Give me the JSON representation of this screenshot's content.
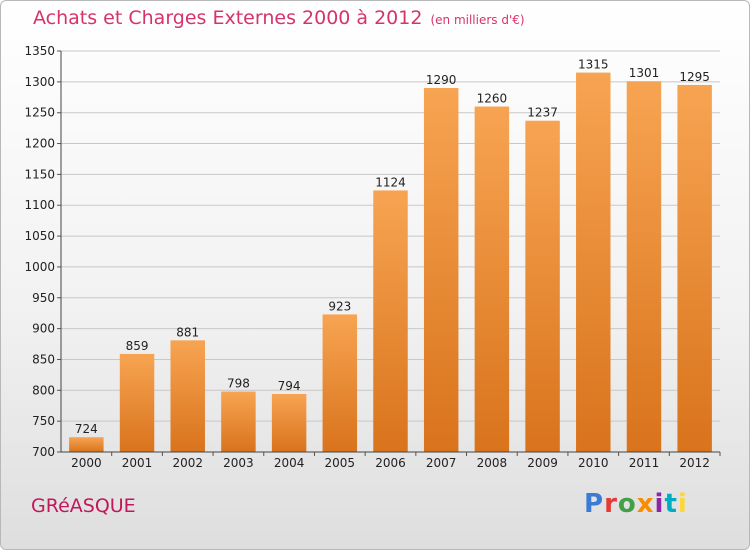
{
  "chart_data": {
    "type": "bar",
    "title": "Achats et Charges Externes 2000 à 2012",
    "unit": "(en milliers d'€)",
    "categories": [
      "2000",
      "2001",
      "2002",
      "2003",
      "2004",
      "2005",
      "2006",
      "2007",
      "2008",
      "2009",
      "2010",
      "2011",
      "2012"
    ],
    "values": [
      724,
      859,
      881,
      798,
      794,
      923,
      1124,
      1290,
      1260,
      1237,
      1315,
      1301,
      1295
    ],
    "ylim": [
      700,
      1350
    ],
    "yticks": [
      700,
      750,
      800,
      850,
      900,
      950,
      1000,
      1050,
      1100,
      1150,
      1200,
      1250,
      1300,
      1350
    ],
    "grid": true,
    "bar_color_top": "#f7a452",
    "bar_color_bottom": "#d9731c",
    "grid_color": "#c8c8c8"
  },
  "footer": {
    "city": "GRéASQUE",
    "logo_text": "Proxiti"
  },
  "colors": {
    "title": "#d6336e",
    "city": "#c2185b",
    "logo": [
      "#3a7bd5",
      "#e53935",
      "#43a047",
      "#fb8c00",
      "#8e24aa",
      "#00acc1",
      "#fdd835"
    ]
  }
}
